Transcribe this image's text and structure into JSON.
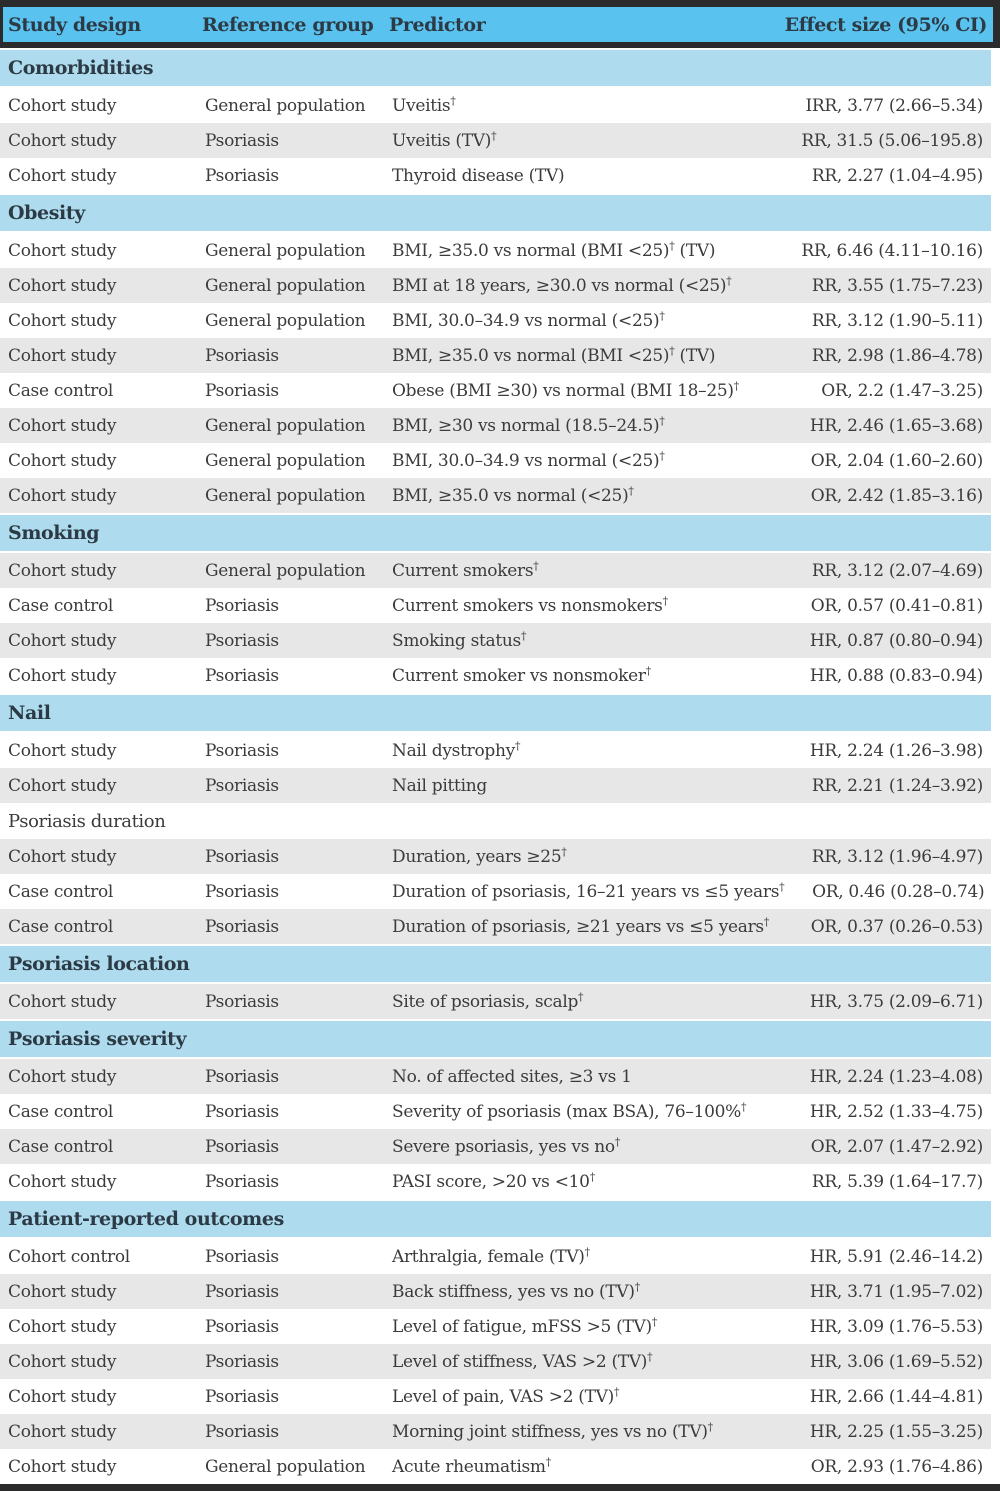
{
  "colors": {
    "frame": "#2b2b2b",
    "header_bg": "#59c2ee",
    "section_bg": "#aedcee",
    "row_alt_bg": "#e7e7e7",
    "body_text": "#3b3b3b",
    "heading_text": "#2c3a45"
  },
  "table": {
    "columns": [
      "Study design",
      "Reference group",
      "Predictor",
      "Effect size (95% CI)"
    ],
    "sections": [
      {
        "label": "Comorbidities",
        "variant": "blue",
        "rows": [
          {
            "design": "Cohort study",
            "ref": "General population",
            "predictor": "Uveitis†",
            "effect": "IRR, 3.77 (2.66–5.34)",
            "shade": "white"
          },
          {
            "design": "Cohort study",
            "ref": "Psoriasis",
            "predictor": "Uveitis (TV)†",
            "effect": "RR, 31.5 (5.06–195.8)",
            "shade": "gray"
          },
          {
            "design": "Cohort study",
            "ref": "Psoriasis",
            "predictor": "Thyroid disease (TV)",
            "effect": "RR, 2.27 (1.04–4.95)",
            "shade": "white"
          }
        ]
      },
      {
        "label": "Obesity",
        "variant": "blue",
        "rows": [
          {
            "design": "Cohort study",
            "ref": "General population",
            "predictor": "BMI, ≥35.0 vs normal (BMI <25)† (TV)",
            "effect": "RR, 6.46 (4.11–10.16)",
            "shade": "white"
          },
          {
            "design": "Cohort study",
            "ref": "General population",
            "predictor": "BMI at 18 years, ≥30.0 vs normal (<25)†",
            "effect": "RR, 3.55 (1.75–7.23)",
            "shade": "gray"
          },
          {
            "design": "Cohort study",
            "ref": "General population",
            "predictor": "BMI, 30.0–34.9 vs normal (<25)†",
            "effect": "RR, 3.12 (1.90–5.11)",
            "shade": "white"
          },
          {
            "design": "Cohort study",
            "ref": "Psoriasis",
            "predictor": "BMI, ≥35.0 vs normal (BMI <25)† (TV)",
            "effect": "RR, 2.98 (1.86–4.78)",
            "shade": "gray"
          },
          {
            "design": "Case control",
            "ref": "Psoriasis",
            "predictor": "Obese (BMI ≥30) vs normal (BMI 18–25)†",
            "effect": "OR, 2.2 (1.47–3.25)",
            "shade": "white"
          },
          {
            "design": "Cohort study",
            "ref": "General population",
            "predictor": "BMI, ≥30 vs normal (18.5–24.5)†",
            "effect": "HR, 2.46 (1.65–3.68)",
            "shade": "gray"
          },
          {
            "design": "Cohort study",
            "ref": "General population",
            "predictor": "BMI, 30.0–34.9 vs normal (<25)†",
            "effect": "OR, 2.04 (1.60–2.60)",
            "shade": "white"
          },
          {
            "design": "Cohort study",
            "ref": "General population",
            "predictor": "BMI, ≥35.0 vs normal (<25)†",
            "effect": "OR, 2.42 (1.85–3.16)",
            "shade": "gray"
          }
        ]
      },
      {
        "label": "Smoking",
        "variant": "blue",
        "rows": [
          {
            "design": "Cohort study",
            "ref": "General population",
            "predictor": "Current smokers†",
            "effect": "RR, 3.12 (2.07–4.69)",
            "shade": "gray"
          },
          {
            "design": "Case control",
            "ref": "Psoriasis",
            "predictor": "Current smokers vs nonsmokers†",
            "effect": "OR, 0.57 (0.41–0.81)",
            "shade": "white"
          },
          {
            "design": "Cohort study",
            "ref": "Psoriasis",
            "predictor": "Smoking status†",
            "effect": "HR, 0.87 (0.80–0.94)",
            "shade": "gray"
          },
          {
            "design": "Cohort study",
            "ref": "Psoriasis",
            "predictor": "Current smoker vs nonsmoker†",
            "effect": "HR, 0.88 (0.83–0.94)",
            "shade": "white"
          }
        ]
      },
      {
        "label": "Nail",
        "variant": "blue",
        "rows": [
          {
            "design": "Cohort study",
            "ref": "Psoriasis",
            "predictor": "Nail dystrophy†",
            "effect": "HR, 2.24 (1.26–3.98)",
            "shade": "white"
          },
          {
            "design": "Cohort study",
            "ref": "Psoriasis",
            "predictor": "Nail pitting",
            "effect": "RR, 2.21 (1.24–3.92)",
            "shade": "gray"
          }
        ]
      },
      {
        "label": "Psoriasis duration",
        "variant": "plain",
        "rows": [
          {
            "design": "Cohort study",
            "ref": "Psoriasis",
            "predictor": "Duration, years ≥25†",
            "effect": "RR, 3.12 (1.96–4.97)",
            "shade": "gray"
          },
          {
            "design": "Case control",
            "ref": "Psoriasis",
            "predictor": "Duration of psoriasis, 16–21 years vs ≤5 years†",
            "effect": "OR, 0.46 (0.28–0.74)",
            "shade": "white"
          },
          {
            "design": "Case control",
            "ref": "Psoriasis",
            "predictor": "Duration of psoriasis, ≥21 years vs ≤5 years†",
            "effect": "OR, 0.37 (0.26–0.53)",
            "shade": "gray"
          }
        ]
      },
      {
        "label": "Psoriasis location",
        "variant": "blue",
        "rows": [
          {
            "design": "Cohort study",
            "ref": "Psoriasis",
            "predictor": "Site of psoriasis, scalp†",
            "effect": "HR, 3.75 (2.09–6.71)",
            "shade": "gray"
          }
        ]
      },
      {
        "label": "Psoriasis severity",
        "variant": "blue",
        "rows": [
          {
            "design": "Cohort study",
            "ref": "Psoriasis",
            "predictor": "No. of affected sites, ≥3 vs 1",
            "effect": "HR, 2.24 (1.23–4.08)",
            "shade": "gray"
          },
          {
            "design": "Case control",
            "ref": "Psoriasis",
            "predictor": "Severity of psoriasis (max BSA), 76–100%†",
            "effect": "HR, 2.52 (1.33–4.75)",
            "shade": "white"
          },
          {
            "design": "Case control",
            "ref": "Psoriasis",
            "predictor": "Severe psoriasis, yes vs no†",
            "effect": "OR, 2.07 (1.47–2.92)",
            "shade": "gray"
          },
          {
            "design": "Cohort study",
            "ref": "Psoriasis",
            "predictor": "PASI score, >20 vs <10†",
            "effect": "RR, 5.39 (1.64–17.7)",
            "shade": "white"
          }
        ]
      },
      {
        "label": "Patient-reported outcomes",
        "variant": "blue",
        "rows": [
          {
            "design": "Cohort control",
            "ref": "Psoriasis",
            "predictor": "Arthralgia, female (TV)†",
            "effect": "HR, 5.91 (2.46–14.2)",
            "shade": "white"
          },
          {
            "design": "Cohort study",
            "ref": "Psoriasis",
            "predictor": "Back stiffness, yes vs no (TV)†",
            "effect": "HR, 3.71 (1.95–7.02)",
            "shade": "gray"
          },
          {
            "design": "Cohort study",
            "ref": "Psoriasis",
            "predictor": "Level of fatigue, mFSS >5 (TV)†",
            "effect": "HR, 3.09 (1.76–5.53)",
            "shade": "white"
          },
          {
            "design": "Cohort study",
            "ref": "Psoriasis",
            "predictor": "Level of stiffness, VAS >2 (TV)†",
            "effect": "HR, 3.06 (1.69–5.52)",
            "shade": "gray"
          },
          {
            "design": "Cohort study",
            "ref": "Psoriasis",
            "predictor": "Level of pain, VAS >2 (TV)†",
            "effect": "HR, 2.66 (1.44–4.81)",
            "shade": "white"
          },
          {
            "design": "Cohort study",
            "ref": "Psoriasis",
            "predictor": "Morning joint stiffness, yes vs no (TV)†",
            "effect": "HR, 2.25 (1.55–3.25)",
            "shade": "gray"
          },
          {
            "design": "Cohort study",
            "ref": "General population",
            "predictor": "Acute rheumatism†",
            "effect": "OR, 2.93 (1.76–4.86)",
            "shade": "white"
          }
        ]
      }
    ]
  }
}
